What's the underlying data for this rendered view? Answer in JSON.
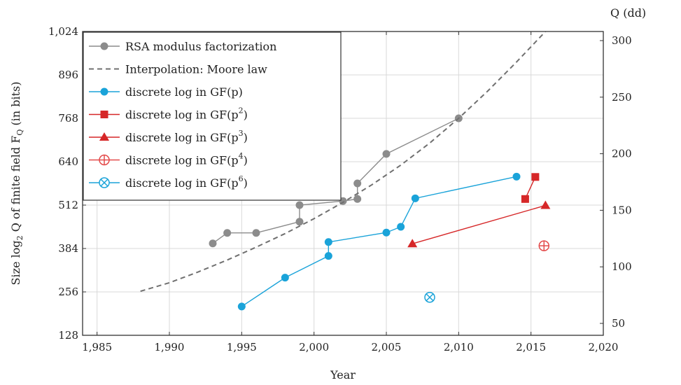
{
  "chart_data": {
    "type": "line",
    "x_axis": {
      "label": "Year",
      "range": [
        1984,
        2020
      ],
      "ticks": [
        1985,
        1990,
        1995,
        2000,
        2005,
        2010,
        2015,
        2020
      ],
      "tick_labels": [
        "1,985",
        "1,990",
        "1,995",
        "2,000",
        "2,005",
        "2,010",
        "2,015",
        "2,020"
      ]
    },
    "y_axis_left": {
      "label_prefix": "Size log",
      "label_sub": "2",
      "label_mid": " Q of finite field F",
      "label_sub2": "Q",
      "label_suffix": " (in bits)",
      "range": [
        128,
        1024
      ],
      "ticks": [
        128,
        256,
        384,
        512,
        640,
        768,
        896,
        1024
      ],
      "tick_labels": [
        "128",
        "256",
        "384",
        "512",
        "640",
        "768",
        "896",
        "1,024"
      ]
    },
    "y_axis_right": {
      "label": "Q (dd)",
      "ticks": [
        50,
        100,
        150,
        200,
        250,
        300
      ],
      "tick_labels": [
        "50",
        "100",
        "150",
        "200",
        "250",
        "300"
      ]
    },
    "grid": true,
    "legend_position": "top-left",
    "series": [
      {
        "name": "RSA modulus factorization",
        "color": "#8c8c8c",
        "marker": "circle",
        "points": [
          [
            1993,
            399
          ],
          [
            1994,
            430
          ],
          [
            1996,
            430
          ],
          [
            1999,
            463
          ],
          [
            1999,
            512
          ],
          [
            2002,
            524
          ],
          [
            2003,
            530
          ],
          [
            2003,
            576
          ],
          [
            2005,
            663
          ],
          [
            2010,
            768
          ]
        ]
      },
      {
        "name": "Interpolation: Moore law",
        "color": "#707070",
        "style": "dashed",
        "points": [
          [
            1988,
            258
          ],
          [
            1990,
            283
          ],
          [
            1992,
            315
          ],
          [
            1994,
            350
          ],
          [
            1996,
            388
          ],
          [
            1998,
            428
          ],
          [
            2000,
            472
          ],
          [
            2002,
            520
          ],
          [
            2004,
            572
          ],
          [
            2006,
            630
          ],
          [
            2008,
            695
          ],
          [
            2010,
            768
          ],
          [
            2012,
            848
          ],
          [
            2014,
            934
          ],
          [
            2016,
            1024
          ]
        ]
      },
      {
        "name": "discrete log in GF(p)",
        "color": "#1aa3d9",
        "marker": "circle",
        "points": [
          [
            1995,
            213
          ],
          [
            1998,
            298
          ],
          [
            2001,
            362
          ],
          [
            2001,
            403
          ],
          [
            2005,
            431
          ],
          [
            2006,
            448
          ],
          [
            2007,
            532
          ],
          [
            2014,
            596
          ]
        ]
      },
      {
        "name": "discrete log in GF(p²)",
        "color": "#d62728",
        "marker": "square",
        "points": [
          [
            2014.6,
            530
          ],
          [
            2015.3,
            595
          ]
        ]
      },
      {
        "name": "discrete log in GF(p³)",
        "color": "#d62728",
        "marker": "triangle",
        "points": [
          [
            2006.8,
            398
          ],
          [
            2016,
            511
          ]
        ]
      },
      {
        "name": "discrete log in GF(p⁴)",
        "color": "#e34a4a",
        "marker": "circled-plus",
        "points": [
          [
            2015.9,
            392
          ]
        ]
      },
      {
        "name": "discrete log in GF(p⁶)",
        "color": "#1aa3d9",
        "marker": "circled-times",
        "points": [
          [
            2008,
            240
          ]
        ]
      }
    ],
    "legend": [
      {
        "text": "RSA modulus factorization",
        "base": "RSA modulus factorization",
        "sup": ""
      },
      {
        "text": "Interpolation: Moore law",
        "base": "Interpolation: Moore law",
        "sup": ""
      },
      {
        "text": "discrete log in GF(p)",
        "base": "discrete log in GF(p)",
        "sup": ""
      },
      {
        "text": "discrete log in GF(p²)",
        "base": "discrete log in GF(p",
        "sup": "2",
        "tail": ")"
      },
      {
        "text": "discrete log in GF(p³)",
        "base": "discrete log in GF(p",
        "sup": "3",
        "tail": ")"
      },
      {
        "text": "discrete log in GF(p⁴)",
        "base": "discrete log in GF(p",
        "sup": "4",
        "tail": ")"
      },
      {
        "text": "discrete log in GF(p⁶)",
        "base": "discrete log in GF(p",
        "sup": "6",
        "tail": ")"
      }
    ]
  }
}
